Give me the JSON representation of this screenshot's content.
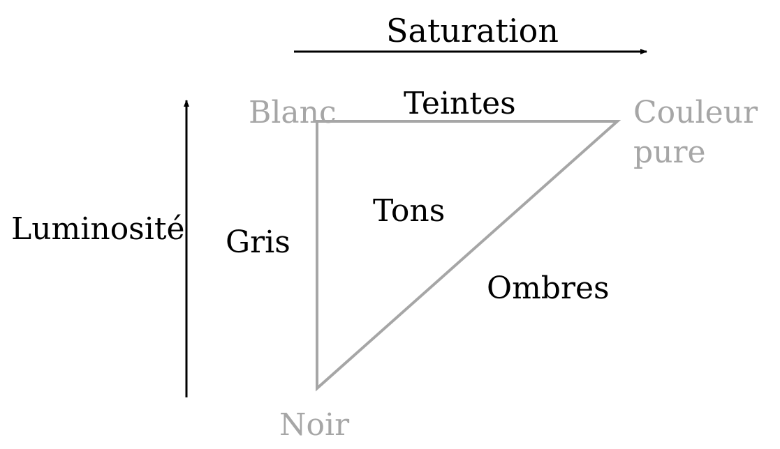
{
  "axes": {
    "saturation": "Saturation",
    "luminosity": "Luminosité"
  },
  "vertices": {
    "white": "Blanc",
    "pure_color_line1": "Couleur",
    "pure_color_line2": "pure",
    "black": "Noir"
  },
  "regions": {
    "tints": "Teintes",
    "tones": "Tons",
    "greys": "Gris",
    "shades": "Ombres"
  },
  "colors": {
    "triangle": "#a6a6a6",
    "vertex_label": "#a6a6a6",
    "text": "#000000",
    "axis": "#000000"
  }
}
